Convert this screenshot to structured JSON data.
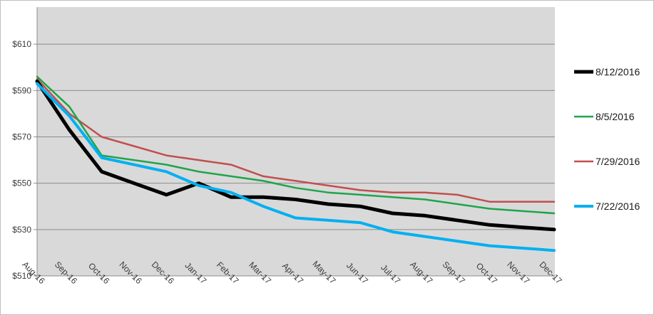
{
  "chart_data": {
    "type": "line",
    "categories": [
      "Aug-16",
      "Sep-16",
      "Oct-16",
      "Nov-16",
      "Dec-16",
      "Jan-17",
      "Feb-17",
      "Mar-17",
      "Apr-17",
      "May-17",
      "Jun-17",
      "Jul-17",
      "Aug-17",
      "Sep-17",
      "Oct-17",
      "Nov-17",
      "Dec-17"
    ],
    "y_ticks": [
      510,
      530,
      550,
      570,
      590,
      610
    ],
    "y_tick_labels": [
      "$510",
      "$530",
      "$550",
      "$570",
      "$590",
      "$610"
    ],
    "ylim": [
      510,
      626
    ],
    "grid": true,
    "legend_position": "right",
    "series": [
      {
        "name": "8/12/2016",
        "color": "#000000",
        "width": 5,
        "values": [
          594,
          573,
          555,
          550,
          545,
          550,
          544,
          544,
          543,
          541,
          540,
          537,
          536,
          534,
          532,
          531,
          530
        ]
      },
      {
        "name": "8/5/2016",
        "color": "#1ea54a",
        "width": 2.5,
        "values": [
          596,
          583,
          562,
          560,
          558,
          555,
          553,
          551,
          548,
          546,
          545,
          544,
          543,
          541,
          539,
          538,
          537
        ]
      },
      {
        "name": "7/29/2016",
        "color": "#c0504d",
        "width": 2.5,
        "values": [
          595,
          580,
          570,
          566,
          562,
          560,
          558,
          553,
          551,
          549,
          547,
          546,
          546,
          545,
          542,
          542,
          542
        ]
      },
      {
        "name": "7/22/2016",
        "color": "#00b0f0",
        "width": 4,
        "values": [
          593,
          579,
          561,
          558,
          555,
          549,
          546,
          540,
          535,
          534,
          533,
          529,
          527,
          525,
          523,
          522,
          521
        ]
      }
    ]
  }
}
